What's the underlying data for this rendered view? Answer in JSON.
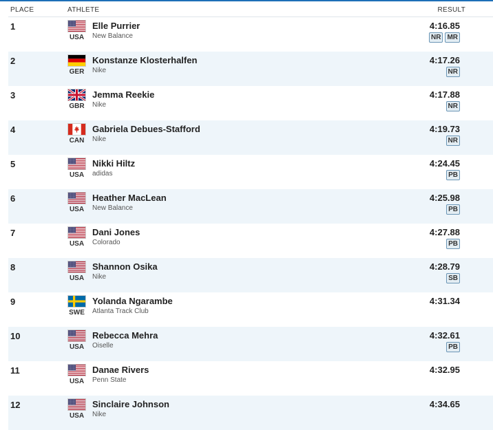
{
  "columns": {
    "place": "PLACE",
    "athlete": "ATHLETE",
    "result": "RESULT"
  },
  "results": [
    {
      "place": "1",
      "name": "Elle Purrier",
      "country": "USA",
      "flag": "us-flag-icon",
      "team": "New Balance",
      "time": "4:16.85",
      "badges": [
        "NR",
        "MR"
      ]
    },
    {
      "place": "2",
      "name": "Konstanze Klosterhalfen",
      "country": "GER",
      "flag": "germany-flag-icon",
      "team": "Nike",
      "time": "4:17.26",
      "badges": [
        "NR"
      ]
    },
    {
      "place": "3",
      "name": "Jemma Reekie",
      "country": "GBR",
      "flag": "uk-flag-icon",
      "team": "Nike",
      "time": "4:17.88",
      "badges": [
        "NR"
      ]
    },
    {
      "place": "4",
      "name": "Gabriela Debues-Stafford",
      "country": "CAN",
      "flag": "canada-flag-icon",
      "team": "Nike",
      "time": "4:19.73",
      "badges": [
        "NR"
      ]
    },
    {
      "place": "5",
      "name": "Nikki Hiltz",
      "country": "USA",
      "flag": "us-flag-icon",
      "team": "adidas",
      "time": "4:24.45",
      "badges": [
        "PB"
      ]
    },
    {
      "place": "6",
      "name": "Heather MacLean",
      "country": "USA",
      "flag": "us-flag-icon",
      "team": "New Balance",
      "time": "4:25.98",
      "badges": [
        "PB"
      ]
    },
    {
      "place": "7",
      "name": "Dani Jones",
      "country": "USA",
      "flag": "us-flag-icon",
      "team": "Colorado",
      "time": "4:27.88",
      "badges": [
        "PB"
      ]
    },
    {
      "place": "8",
      "name": "Shannon Osika",
      "country": "USA",
      "flag": "us-flag-icon",
      "team": "Nike",
      "time": "4:28.79",
      "badges": [
        "SB"
      ]
    },
    {
      "place": "9",
      "name": "Yolanda Ngarambe",
      "country": "SWE",
      "flag": "sweden-flag-icon",
      "team": "Atlanta Track Club",
      "time": "4:31.34",
      "badges": []
    },
    {
      "place": "10",
      "name": "Rebecca Mehra",
      "country": "USA",
      "flag": "us-flag-icon",
      "team": "Oiselle",
      "time": "4:32.61",
      "badges": [
        "PB"
      ]
    },
    {
      "place": "11",
      "name": "Danae Rivers",
      "country": "USA",
      "flag": "us-flag-icon",
      "team": "Penn State",
      "time": "4:32.95",
      "badges": []
    },
    {
      "place": "12",
      "name": "Sinclaire Johnson",
      "country": "USA",
      "flag": "us-flag-icon",
      "team": "Nike",
      "time": "4:34.65",
      "badges": []
    }
  ]
}
